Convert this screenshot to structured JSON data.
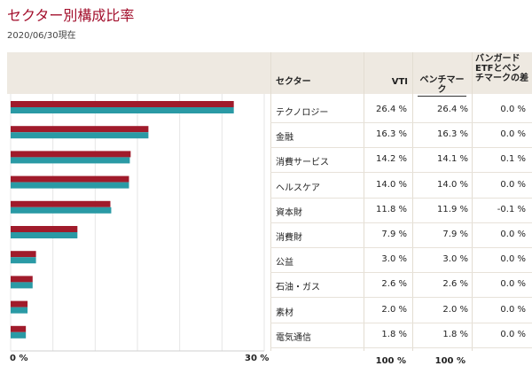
{
  "page": {
    "title": "セクター別構成比率",
    "date": "2020/06/30現在"
  },
  "table": {
    "headers": {
      "sector": "セクター",
      "vti": "VTI",
      "benchmark": "ベンチマーク",
      "diff": "バンガードETFとベンチマークの差"
    },
    "rows": [
      {
        "sector": "テクノロジー",
        "vti": "26.4 %",
        "bench": "26.4 %",
        "diff": "0.0 %"
      },
      {
        "sector": "金融",
        "vti": "16.3 %",
        "bench": "16.3 %",
        "diff": "0.0 %"
      },
      {
        "sector": "消費サービス",
        "vti": "14.2 %",
        "bench": "14.1 %",
        "diff": "0.1 %"
      },
      {
        "sector": "ヘルスケア",
        "vti": "14.0 %",
        "bench": "14.0 %",
        "diff": "0.0 %"
      },
      {
        "sector": "資本財",
        "vti": "11.8 %",
        "bench": "11.9 %",
        "diff": "-0.1 %"
      },
      {
        "sector": "消費財",
        "vti": "7.9 %",
        "bench": "7.9 %",
        "diff": "0.0 %"
      },
      {
        "sector": "公益",
        "vti": "3.0 %",
        "bench": "3.0 %",
        "diff": "0.0 %"
      },
      {
        "sector": "石油・ガス",
        "vti": "2.6 %",
        "bench": "2.6 %",
        "diff": "0.0 %"
      },
      {
        "sector": "素材",
        "vti": "2.0 %",
        "bench": "2.0 %",
        "diff": "0.0 %"
      },
      {
        "sector": "電気通信",
        "vti": "1.8 %",
        "bench": "1.8 %",
        "diff": "0.0 %"
      }
    ],
    "totals": {
      "vti": "100 %",
      "bench": "100 %"
    }
  },
  "chart_data": {
    "type": "bar",
    "orientation": "horizontal",
    "categories": [
      "テクノロジー",
      "金融",
      "消費サービス",
      "ヘルスケア",
      "資本財",
      "消費財",
      "公益",
      "石油・ガス",
      "素材",
      "電気通信"
    ],
    "series": [
      {
        "name": "VTI",
        "color": "#a01b2b",
        "values": [
          26.4,
          16.3,
          14.2,
          14.0,
          11.8,
          7.9,
          3.0,
          2.6,
          2.0,
          1.8
        ]
      },
      {
        "name": "ベンチマーク",
        "color": "#2a9aa5",
        "values": [
          26.4,
          16.3,
          14.1,
          14.0,
          11.9,
          7.9,
          3.0,
          2.6,
          2.0,
          1.8
        ]
      }
    ],
    "xlim": [
      0,
      30
    ],
    "tick_labels": [
      "0 %",
      "30 %"
    ],
    "grid": true
  }
}
